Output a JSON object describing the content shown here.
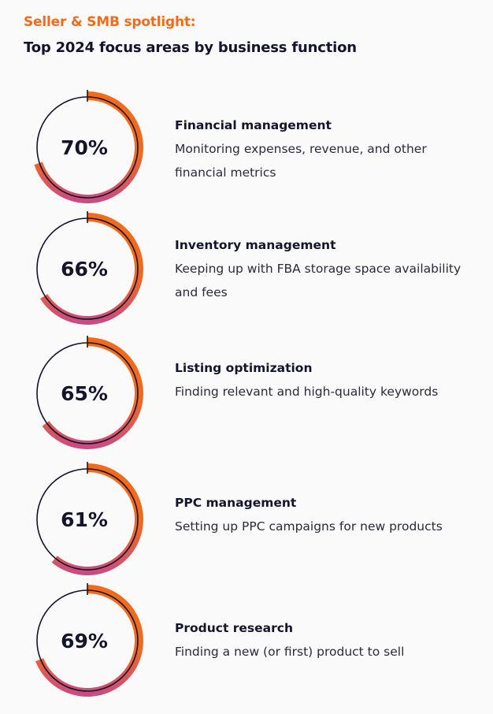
{
  "header": {
    "kicker": "Seller & SMB spotlight:",
    "title": "Top 2024 focus areas by business function"
  },
  "colors": {
    "orange": "#f26b1d",
    "magenta": "#c84a86",
    "ink": "#14142b"
  },
  "chart_data": {
    "type": "donut",
    "unit": "%",
    "items": [
      {
        "value": 70,
        "label": "70%",
        "name": "Financial management",
        "description": "Monitoring expenses, revenue, and other financial metrics"
      },
      {
        "value": 66,
        "label": "66%",
        "name": "Inventory management",
        "description": "Keeping up with FBA storage space availability and fees"
      },
      {
        "value": 65,
        "label": "65%",
        "name": "Listing optimization",
        "description": "Finding relevant and high-quality keywords"
      },
      {
        "value": 61,
        "label": "61%",
        "name": "PPC management",
        "description": "Setting up PPC campaigns for new products"
      },
      {
        "value": 69,
        "label": "69%",
        "name": "Product research",
        "description": "Finding a new (or first) product to sell"
      }
    ]
  }
}
